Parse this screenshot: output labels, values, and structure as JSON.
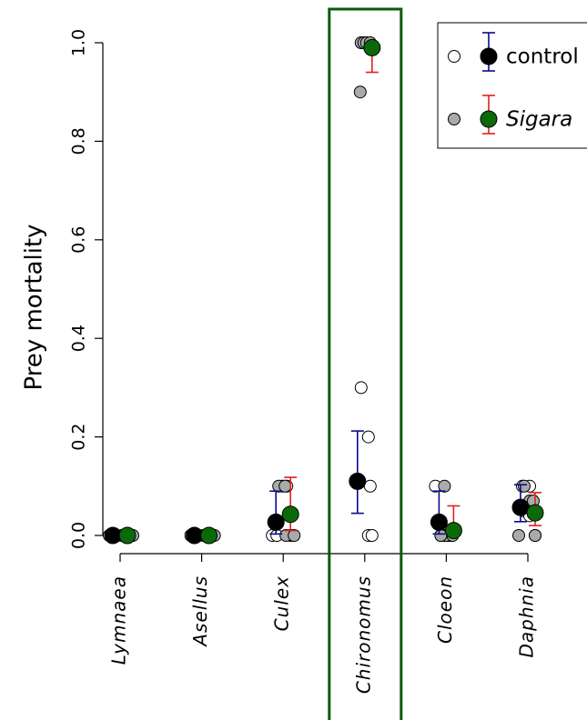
{
  "chart_data": {
    "type": "scatter",
    "ylabel": "Prey mortality",
    "xlabel": "",
    "ylim": [
      0,
      1
    ],
    "yticks": [
      "0.0",
      "0.2",
      "0.4",
      "0.6",
      "0.8",
      "1.0"
    ],
    "categories": [
      "Lymnaea",
      "Asellus",
      "Culex",
      "Chironomus",
      "Cloeon",
      "Daphnia"
    ],
    "highlighted_category": "Chironomus",
    "highlight_color": "#0b5a0b",
    "legend": {
      "position": "top-right",
      "items": [
        {
          "label": "control",
          "italic": false
        },
        {
          "label": "Sigara",
          "italic": true
        }
      ]
    },
    "series": [
      {
        "name": "control",
        "raw_color": "#ffffff",
        "mean_color": "#000000",
        "error_color": "#0a0a8c",
        "means": [
          0,
          0,
          0.027,
          0.11,
          0.027,
          0.057
        ],
        "error_low": [
          0,
          0,
          0.003,
          0.045,
          0.003,
          0.028
        ],
        "error_high": [
          0,
          0,
          0.09,
          0.212,
          0.09,
          0.103
        ],
        "raw": [
          [
            0,
            0,
            0,
            0,
            0
          ],
          [
            0,
            0,
            0,
            0,
            0
          ],
          [
            0,
            0,
            0,
            0.1,
            0.1
          ],
          [
            0.3,
            0.2,
            0.1,
            0,
            0
          ],
          [
            0.1,
            0,
            0,
            0,
            0
          ],
          [
            0.1,
            0.1,
            0.05,
            0.04,
            0
          ]
        ]
      },
      {
        "name": "Sigara",
        "raw_color": "#aaaaaa",
        "mean_color": "#0a6a0a",
        "error_color": "#e02020",
        "means": [
          0,
          0,
          0.043,
          0.99,
          0.01,
          0.046
        ],
        "error_low": [
          0,
          0,
          0.01,
          0.94,
          0.0,
          0.02
        ],
        "error_high": [
          0,
          0,
          0.118,
          1.0,
          0.06,
          0.087
        ],
        "raw": [
          [
            0,
            0,
            0,
            0,
            0
          ],
          [
            0,
            0,
            0,
            0,
            0
          ],
          [
            0.1,
            0.1,
            0,
            0,
            0
          ],
          [
            1.0,
            1.0,
            1.0,
            0.9,
            1.0
          ],
          [
            0.1,
            0,
            0,
            0,
            0
          ],
          [
            0.1,
            0.07,
            0.07,
            0,
            0
          ]
        ]
      }
    ]
  }
}
